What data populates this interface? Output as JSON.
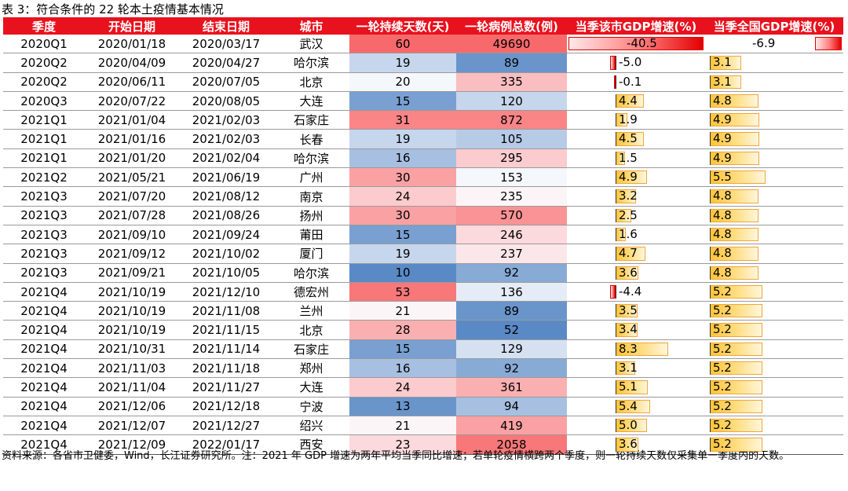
{
  "title": "表 3：符合条件的 22 轮本土疫情基本情况",
  "columns": [
    "季度",
    "开始日期",
    "结束日期",
    "城市",
    "一轮持续天数(天)",
    "一轮病例总数(例)",
    "当季该市GDP增速(%)",
    "当季全国GDP增速(%)"
  ],
  "rows": [
    {
      "quarter": "2020Q1",
      "start": "2020/01/18",
      "end": "2020/03/17",
      "city": "武汉",
      "days": 60,
      "cases": 49690,
      "city_gdp": "-40.5",
      "nat_gdp": "-6.9"
    },
    {
      "quarter": "2020Q2",
      "start": "2020/04/09",
      "end": "2020/04/27",
      "city": "哈尔滨",
      "days": 19,
      "cases": 89,
      "city_gdp": "-5.0",
      "nat_gdp": "3.1"
    },
    {
      "quarter": "2020Q2",
      "start": "2020/06/11",
      "end": "2020/07/05",
      "city": "北京",
      "days": 20,
      "cases": 335,
      "city_gdp": "-0.1",
      "nat_gdp": "3.1"
    },
    {
      "quarter": "2020Q3",
      "start": "2020/07/22",
      "end": "2020/08/05",
      "city": "大连",
      "days": 15,
      "cases": 120,
      "city_gdp": "4.4",
      "nat_gdp": "4.8"
    },
    {
      "quarter": "2021Q1",
      "start": "2021/01/04",
      "end": "2021/02/03",
      "city": "石家庄",
      "days": 31,
      "cases": 872,
      "city_gdp": "1.9",
      "nat_gdp": "4.9"
    },
    {
      "quarter": "2021Q1",
      "start": "2021/01/16",
      "end": "2021/02/03",
      "city": "长春",
      "days": 19,
      "cases": 105,
      "city_gdp": "4.5",
      "nat_gdp": "4.9"
    },
    {
      "quarter": "2021Q1",
      "start": "2021/01/20",
      "end": "2021/02/04",
      "city": "哈尔滨",
      "days": 16,
      "cases": 295,
      "city_gdp": "1.5",
      "nat_gdp": "4.9"
    },
    {
      "quarter": "2021Q2",
      "start": "2021/05/21",
      "end": "2021/06/19",
      "city": "广州",
      "days": 30,
      "cases": 153,
      "city_gdp": "4.9",
      "nat_gdp": "5.5"
    },
    {
      "quarter": "2021Q3",
      "start": "2021/07/20",
      "end": "2021/08/12",
      "city": "南京",
      "days": 24,
      "cases": 235,
      "city_gdp": "3.2",
      "nat_gdp": "4.8"
    },
    {
      "quarter": "2021Q3",
      "start": "2021/07/28",
      "end": "2021/08/26",
      "city": "扬州",
      "days": 30,
      "cases": 570,
      "city_gdp": "2.5",
      "nat_gdp": "4.8"
    },
    {
      "quarter": "2021Q3",
      "start": "2021/09/10",
      "end": "2021/09/24",
      "city": "莆田",
      "days": 15,
      "cases": 246,
      "city_gdp": "1.6",
      "nat_gdp": "4.8"
    },
    {
      "quarter": "2021Q3",
      "start": "2021/09/12",
      "end": "2021/10/02",
      "city": "厦门",
      "days": 19,
      "cases": 237,
      "city_gdp": "4.7",
      "nat_gdp": "4.8"
    },
    {
      "quarter": "2021Q3",
      "start": "2021/09/21",
      "end": "2021/10/05",
      "city": "哈尔滨",
      "days": 10,
      "cases": 92,
      "city_gdp": "3.6",
      "nat_gdp": "4.8"
    },
    {
      "quarter": "2021Q4",
      "start": "2021/10/19",
      "end": "2021/12/10",
      "city": "德宏州",
      "days": 53,
      "cases": 136,
      "city_gdp": "-4.4",
      "nat_gdp": "5.2"
    },
    {
      "quarter": "2021Q4",
      "start": "2021/10/19",
      "end": "2021/11/08",
      "city": "兰州",
      "days": 21,
      "cases": 89,
      "city_gdp": "3.5",
      "nat_gdp": "5.2"
    },
    {
      "quarter": "2021Q4",
      "start": "2021/10/19",
      "end": "2021/11/15",
      "city": "北京",
      "days": 28,
      "cases": 52,
      "city_gdp": "3.4",
      "nat_gdp": "5.2"
    },
    {
      "quarter": "2021Q4",
      "start": "2021/10/31",
      "end": "2021/11/14",
      "city": "石家庄",
      "days": 15,
      "cases": 129,
      "city_gdp": "8.3",
      "nat_gdp": "5.2"
    },
    {
      "quarter": "2021Q4",
      "start": "2021/11/03",
      "end": "2021/11/18",
      "city": "郑州",
      "days": 16,
      "cases": 92,
      "city_gdp": "3.1",
      "nat_gdp": "5.2"
    },
    {
      "quarter": "2021Q4",
      "start": "2021/11/04",
      "end": "2021/11/27",
      "city": "大连",
      "days": 24,
      "cases": 361,
      "city_gdp": "5.1",
      "nat_gdp": "5.2"
    },
    {
      "quarter": "2021Q4",
      "start": "2021/12/06",
      "end": "2021/12/18",
      "city": "宁波",
      "days": 13,
      "cases": 94,
      "city_gdp": "5.4",
      "nat_gdp": "5.2"
    },
    {
      "quarter": "2021Q4",
      "start": "2021/12/07",
      "end": "2021/12/27",
      "city": "绍兴",
      "days": 21,
      "cases": 419,
      "city_gdp": "5.0",
      "nat_gdp": "5.2"
    },
    {
      "quarter": "2021Q4",
      "start": "2021/12/09",
      "end": "2022/01/17",
      "city": "西安",
      "days": 23,
      "cases": 2058,
      "city_gdp": "3.6",
      "nat_gdp": "5.2"
    }
  ],
  "note": "资料来源：各省市卫健委，Wind，长江证券研究所。注：2021 年 GDP 增速为两年平均当季同比增速；若单轮疫情横跨两个季度，则一轮持续天数仅采集单一季度内的天数。",
  "colors": {
    "header_bg": "#e8121e",
    "heat_high": "#f8696b",
    "heat_mid": "#fcfcff",
    "heat_low": "#5a8ac6"
  }
}
